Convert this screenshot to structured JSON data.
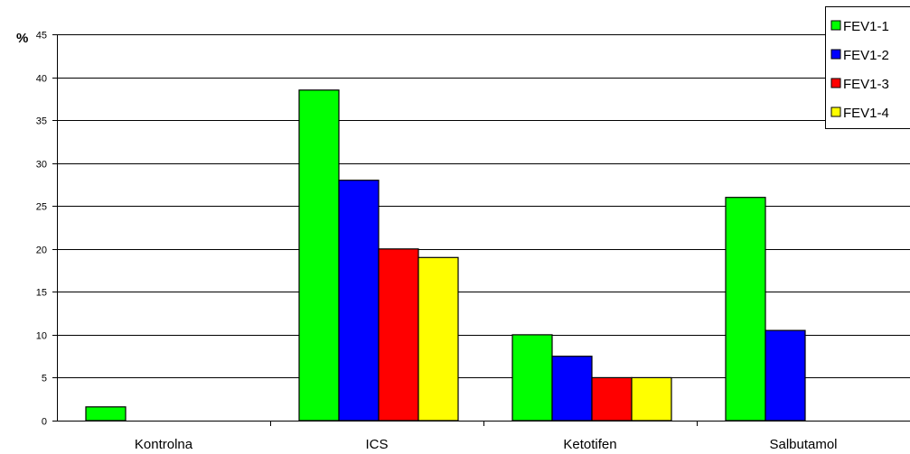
{
  "chart_data": {
    "type": "bar",
    "ylabel": "%",
    "xlabel": "",
    "ylim": [
      0,
      45
    ],
    "yticks": [
      0,
      5,
      10,
      15,
      20,
      25,
      30,
      35,
      40,
      45
    ],
    "grid": true,
    "legend_position": "top-right",
    "categories": [
      "Kontrolna",
      "ICS",
      "Ketotifen",
      "Salbutamol"
    ],
    "series": [
      {
        "name": "FEV1-1",
        "color": "#00ff00",
        "values": [
          1.6,
          38.5,
          10,
          26
        ]
      },
      {
        "name": "FEV1-2",
        "color": "#0000ff",
        "values": [
          null,
          28,
          7.5,
          10.5
        ]
      },
      {
        "name": "FEV1-3",
        "color": "#ff0000",
        "values": [
          null,
          20,
          5,
          null
        ]
      },
      {
        "name": "FEV1-4",
        "color": "#ffff00",
        "values": [
          null,
          19,
          5,
          null
        ]
      }
    ]
  }
}
